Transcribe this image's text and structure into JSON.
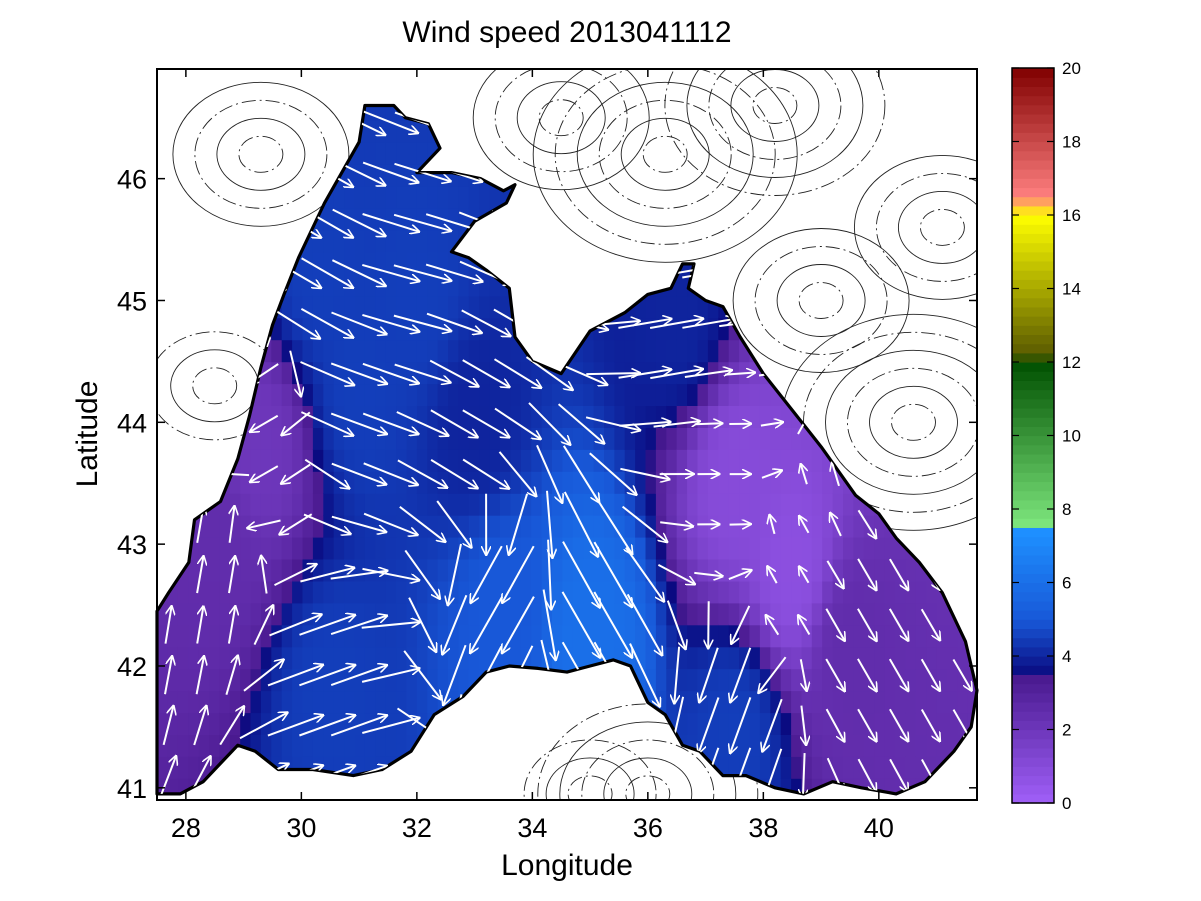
{
  "title": "Wind speed 2013041112",
  "xlabel": "Longitude",
  "ylabel": "Latitude",
  "x_ticks": [
    "28",
    "30",
    "32",
    "34",
    "36",
    "38",
    "40"
  ],
  "y_ticks": [
    "41",
    "42",
    "43",
    "44",
    "45",
    "46"
  ],
  "colorbar": {
    "ticks": [
      "0",
      "2",
      "4",
      "6",
      "8",
      "10",
      "12",
      "14",
      "16",
      "18",
      "20"
    ],
    "min": 0,
    "max": 20
  },
  "chart_data": {
    "type": "heatmap",
    "title": "Wind speed 2013041112",
    "xlabel": "Longitude",
    "ylabel": "Latitude",
    "xlim": [
      27.5,
      41.7
    ],
    "ylim": [
      40.9,
      46.9
    ],
    "x_ticks": [
      28,
      30,
      32,
      34,
      36,
      38,
      40
    ],
    "y_ticks": [
      41,
      42,
      43,
      44,
      45,
      46
    ],
    "colorbar_range": [
      0,
      20
    ],
    "colorbar_ticks": [
      0,
      2,
      4,
      6,
      8,
      10,
      12,
      14,
      16,
      18,
      20
    ],
    "overlay": "wind vectors (white arrows) and contour lines over land",
    "colormap_stops": [
      {
        "value": 0,
        "color": "#a060f8"
      },
      {
        "value": 3.4,
        "color": "#4a1a90"
      },
      {
        "value": 3.5,
        "color": "#0a0a80"
      },
      {
        "value": 5,
        "color": "#1858d8"
      },
      {
        "value": 7.4,
        "color": "#1e90ff"
      },
      {
        "value": 7.5,
        "color": "#7fe87f"
      },
      {
        "value": 12,
        "color": "#005000"
      },
      {
        "value": 12.2,
        "color": "#5a5a00"
      },
      {
        "value": 16,
        "color": "#ffff00"
      },
      {
        "value": 16.5,
        "color": "#ff8080"
      },
      {
        "value": 20,
        "color": "#800000"
      }
    ],
    "wind_field": [
      {
        "lon": 28.5,
        "lat": 43.0,
        "speed": 2.5,
        "dir": 80
      },
      {
        "lon": 29.3,
        "lat": 43.8,
        "speed": 2.0,
        "dir": 210
      },
      {
        "lon": 30.3,
        "lat": 45.2,
        "speed": 4.5,
        "dir": 330
      },
      {
        "lon": 31.0,
        "lat": 44.3,
        "speed": 4.5,
        "dir": 340
      },
      {
        "lon": 32.0,
        "lat": 45.0,
        "speed": 4.5,
        "dir": 345
      },
      {
        "lon": 33.0,
        "lat": 44.0,
        "speed": 4.0,
        "dir": 330
      },
      {
        "lon": 33.5,
        "lat": 42.5,
        "speed": 5.0,
        "dir": 240
      },
      {
        "lon": 35.0,
        "lat": 42.3,
        "speed": 6.0,
        "dir": 300
      },
      {
        "lon": 36.5,
        "lat": 44.8,
        "speed": 4.0,
        "dir": 10
      },
      {
        "lon": 37.5,
        "lat": 43.5,
        "speed": 1.0,
        "dir": 0
      },
      {
        "lon": 38.5,
        "lat": 42.8,
        "speed": 0.8,
        "dir": 120
      },
      {
        "lon": 39.5,
        "lat": 42.2,
        "speed": 2.5,
        "dir": 300
      },
      {
        "lon": 37.5,
        "lat": 41.5,
        "speed": 4.5,
        "dir": 250
      },
      {
        "lon": 30.5,
        "lat": 41.8,
        "speed": 4.5,
        "dir": 20
      }
    ]
  }
}
